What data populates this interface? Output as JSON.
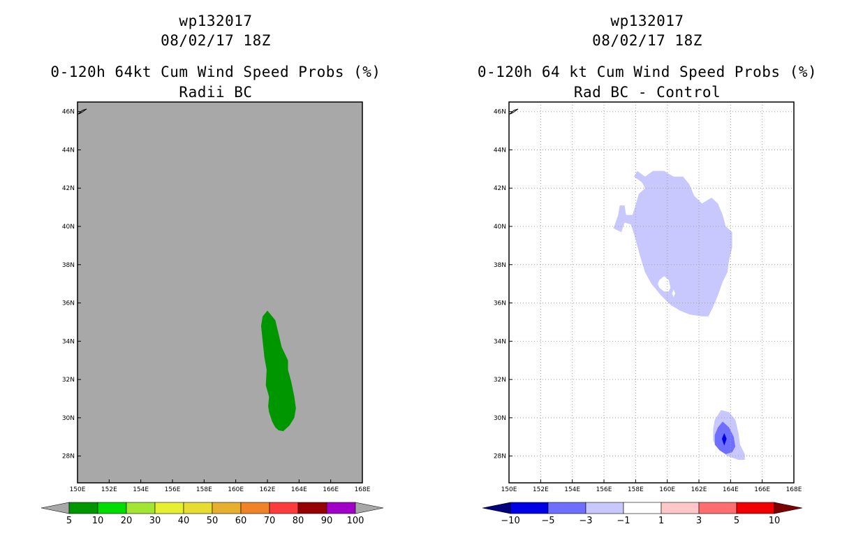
{
  "chart_data": [
    {
      "type": "contour-map",
      "title_lines": [
        "wp132017",
        "08/02/17 18Z",
        "0-120h 64kt Cum Wind Speed Probs (%)",
        "Radii BC"
      ],
      "background": "#a8a8a8",
      "x_ticks": [
        "150E",
        "152E",
        "154E",
        "156E",
        "158E",
        "160E",
        "162E",
        "164E",
        "166E",
        "168E"
      ],
      "y_ticks": [
        "28N",
        "30N",
        "32N",
        "34N",
        "36N",
        "38N",
        "40N",
        "42N",
        "44N",
        "46N"
      ],
      "xlim": [
        150,
        168
      ],
      "ylim": [
        26.6,
        46.5
      ],
      "grid": false,
      "regions": [
        {
          "level": "5-10",
          "color": "#009600",
          "polygon": [
            [
              162,
              35.6
            ],
            [
              162.5,
              35.1
            ],
            [
              162.7,
              34.4
            ],
            [
              162.9,
              33.7
            ],
            [
              163.3,
              33
            ],
            [
              163.3,
              32.5
            ],
            [
              163.5,
              31.9
            ],
            [
              163.7,
              31.1
            ],
            [
              163.8,
              30.5
            ],
            [
              163.7,
              30
            ],
            [
              163.4,
              29.6
            ],
            [
              163.0,
              29.3
            ],
            [
              162.7,
              29.35
            ],
            [
              162.5,
              29.5
            ],
            [
              162.3,
              29.8
            ],
            [
              162.1,
              30.3
            ],
            [
              162.05,
              30.6
            ],
            [
              162.1,
              31.1
            ],
            [
              161.9,
              31.7
            ],
            [
              161.95,
              32.5
            ],
            [
              161.8,
              33.2
            ],
            [
              161.7,
              34.0
            ],
            [
              161.6,
              34.8
            ],
            [
              161.7,
              35.3
            ]
          ]
        }
      ],
      "colorbar": {
        "labels": [
          "5",
          "10",
          "20",
          "30",
          "40",
          "50",
          "60",
          "70",
          "80",
          "90",
          "100"
        ],
        "colors": [
          "#009600",
          "#00dc00",
          "#a0e632",
          "#e6f032",
          "#e6dc32",
          "#e6af2d",
          "#f08228",
          "#fa3c3c",
          "#960000",
          "#a000c8"
        ],
        "under_color": "#a8a8a8",
        "over_color": "#a8a8a8"
      }
    },
    {
      "type": "contour-map",
      "title_lines": [
        "wp132017",
        "08/02/17 18Z",
        "0-120h 64 kt Cum Wind Speed Probs (%)",
        "Rad BC - Control"
      ],
      "background": "#ffffff",
      "x_ticks": [
        "150E",
        "152E",
        "154E",
        "156E",
        "158E",
        "160E",
        "162E",
        "164E",
        "166E",
        "168E"
      ],
      "y_ticks": [
        "28N",
        "30N",
        "32N",
        "34N",
        "36N",
        "38N",
        "40N",
        "42N",
        "44N",
        "46N"
      ],
      "xlim": [
        150,
        168
      ],
      "ylim": [
        26.6,
        46.5
      ],
      "grid": true,
      "regions": [
        {
          "level": "-3 to -1",
          "color": "#c8c8ff",
          "polygon": [
            [
              158.1,
              42.9
            ],
            [
              158.6,
              42.6
            ],
            [
              159.1,
              42.9
            ],
            [
              159.8,
              42.9
            ],
            [
              160.4,
              42.6
            ],
            [
              161.0,
              42.6
            ],
            [
              161.4,
              42.2
            ],
            [
              161.7,
              41.6
            ],
            [
              162.2,
              41.2
            ],
            [
              162.8,
              41.5
            ],
            [
              163.2,
              41.2
            ],
            [
              163.5,
              40.6
            ],
            [
              163.7,
              40.0
            ],
            [
              164.1,
              39.7
            ],
            [
              164.1,
              38.9
            ],
            [
              163.9,
              38.2
            ],
            [
              163.8,
              37.6
            ],
            [
              163.5,
              37.1
            ],
            [
              163.2,
              36.4
            ],
            [
              162.9,
              35.8
            ],
            [
              162.6,
              35.3
            ],
            [
              162.2,
              35.3
            ],
            [
              161.4,
              35.4
            ],
            [
              160.8,
              35.6
            ],
            [
              160.2,
              35.9
            ],
            [
              159.6,
              36.4
            ],
            [
              159.0,
              37.0
            ],
            [
              158.6,
              37.6
            ],
            [
              158.3,
              38.4
            ],
            [
              158.1,
              39.0
            ],
            [
              157.9,
              39.6
            ],
            [
              157.7,
              40.1
            ],
            [
              157.3,
              40.2
            ],
            [
              157.1,
              39.7
            ],
            [
              156.6,
              39.9
            ],
            [
              156.9,
              40.6
            ],
            [
              157.0,
              41.1
            ],
            [
              157.3,
              41.1
            ],
            [
              157.4,
              40.6
            ],
            [
              157.8,
              40.6
            ],
            [
              158.0,
              41.1
            ],
            [
              158.2,
              41.7
            ],
            [
              158.6,
              42.0
            ],
            [
              158.4,
              42.3
            ],
            [
              157.9,
              42.6
            ]
          ]
        },
        {
          "level": "-3 to -1",
          "color": "#c8c8ff",
          "polygon": [
            [
              163.4,
              30.4
            ],
            [
              163.9,
              30.3
            ],
            [
              164.3,
              29.9
            ],
            [
              164.5,
              29.2
            ],
            [
              164.6,
              28.6
            ],
            [
              164.9,
              28.1
            ],
            [
              164.9,
              27.8
            ],
            [
              164.5,
              27.8
            ],
            [
              163.8,
              28.0
            ],
            [
              163.3,
              28.3
            ],
            [
              162.9,
              28.8
            ],
            [
              162.9,
              29.4
            ],
            [
              163.0,
              29.9
            ]
          ]
        },
        {
          "level": "-5 to -3",
          "color": "#6e6eff",
          "polygon": [
            [
              163.5,
              29.8
            ],
            [
              163.9,
              29.5
            ],
            [
              164.2,
              29.0
            ],
            [
              164.3,
              28.5
            ],
            [
              164.1,
              28.2
            ],
            [
              163.7,
              28.1
            ],
            [
              163.3,
              28.3
            ],
            [
              163.0,
              28.6
            ],
            [
              163.0,
              29.1
            ],
            [
              163.2,
              29.5
            ]
          ]
        },
        {
          "level": "-10 to -5",
          "color": "#0000e6",
          "polygon": [
            [
              163.6,
              29.2
            ],
            [
              163.75,
              28.9
            ],
            [
              163.6,
              28.55
            ],
            [
              163.45,
              28.9
            ]
          ]
        }
      ],
      "holes": [
        {
          "color": "#ffffff",
          "polygon": [
            [
              159.5,
              37.2
            ],
            [
              159.8,
              37.4
            ],
            [
              160.1,
              37.2
            ],
            [
              160.2,
              36.8
            ],
            [
              160.1,
              36.6
            ],
            [
              159.8,
              36.6
            ],
            [
              159.5,
              36.8
            ],
            [
              159.4,
              37.0
            ]
          ]
        },
        {
          "color": "#ffffff",
          "polygon": [
            [
              160.4,
              36.7
            ],
            [
              160.5,
              36.5
            ],
            [
              160.4,
              36.3
            ],
            [
              160.3,
              36.5
            ]
          ]
        }
      ],
      "colorbar": {
        "labels": [
          "-10",
          "-5",
          "-3",
          "-1",
          "1",
          "3",
          "5",
          "10"
        ],
        "colors": [
          "#0000e6",
          "#6e6eff",
          "#c8c8ff",
          "#ffffff",
          "#ffc8c8",
          "#ff6e6e",
          "#f00000"
        ],
        "under_color": "#00007d",
        "over_color": "#7d0000"
      }
    }
  ]
}
